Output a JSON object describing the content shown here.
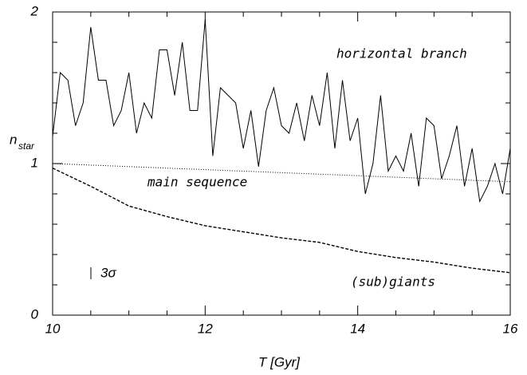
{
  "chart_data": {
    "type": "line",
    "xlabel": "T [Gyr]",
    "ylabel": "n",
    "ylabel_sub": "star",
    "xlim": [
      10,
      16
    ],
    "ylim": [
      0,
      2
    ],
    "xticks": [
      10,
      12,
      14,
      16
    ],
    "yticks": [
      0,
      1,
      2
    ],
    "xminor": [
      10.5,
      11,
      11.5,
      12.5,
      13,
      13.5,
      14.5,
      15,
      15.5
    ],
    "yminor": [
      0.2,
      0.4,
      0.6,
      0.8,
      1.2,
      1.4,
      1.6,
      1.8
    ],
    "annotations": [
      "horizontal branch",
      "main sequence",
      "(sub)giants"
    ],
    "error_bar_label": "3σ",
    "series": [
      {
        "name": "horizontal branch",
        "color": "#000",
        "dash": "solid",
        "x": [
          10.0,
          10.1,
          10.2,
          10.3,
          10.4,
          10.5,
          10.6,
          10.7,
          10.8,
          10.9,
          11.0,
          11.1,
          11.2,
          11.3,
          11.4,
          11.5,
          11.6,
          11.7,
          11.8,
          11.9,
          12.0,
          12.1,
          12.2,
          12.3,
          12.4,
          12.5,
          12.6,
          12.7,
          12.8,
          12.9,
          13.0,
          13.1,
          13.2,
          13.3,
          13.4,
          13.5,
          13.6,
          13.7,
          13.8,
          13.9,
          14.0,
          14.1,
          14.2,
          14.3,
          14.4,
          14.5,
          14.6,
          14.7,
          14.8,
          14.9,
          15.0,
          15.1,
          15.2,
          15.3,
          15.4,
          15.5,
          15.6,
          15.7,
          15.8,
          15.9,
          16.0
        ],
        "values": [
          1.18,
          1.6,
          1.55,
          1.25,
          1.4,
          1.9,
          1.55,
          1.55,
          1.25,
          1.35,
          1.6,
          1.2,
          1.4,
          1.3,
          1.75,
          1.75,
          1.45,
          1.8,
          1.35,
          1.35,
          1.95,
          1.05,
          1.5,
          1.45,
          1.4,
          1.1,
          1.35,
          0.98,
          1.35,
          1.5,
          1.25,
          1.2,
          1.4,
          1.15,
          1.45,
          1.25,
          1.6,
          1.1,
          1.55,
          1.15,
          1.3,
          0.8,
          1.0,
          1.45,
          0.95,
          1.05,
          0.95,
          1.2,
          0.85,
          1.3,
          1.25,
          0.9,
          1.05,
          1.25,
          0.85,
          1.1,
          0.75,
          0.85,
          1.0,
          0.8,
          1.1
        ]
      },
      {
        "name": "main sequence",
        "color": "#000",
        "dash": "dotted",
        "x": [
          10,
          16
        ],
        "values": [
          1.0,
          0.88
        ]
      },
      {
        "name": "(sub)giants",
        "color": "#000",
        "dash": "dashed",
        "x": [
          10.0,
          10.5,
          11.0,
          11.5,
          12.0,
          12.5,
          13.0,
          13.5,
          14.0,
          14.5,
          15.0,
          15.5,
          16.0
        ],
        "values": [
          0.97,
          0.85,
          0.72,
          0.65,
          0.59,
          0.55,
          0.51,
          0.48,
          0.42,
          0.38,
          0.35,
          0.31,
          0.28
        ]
      }
    ]
  }
}
